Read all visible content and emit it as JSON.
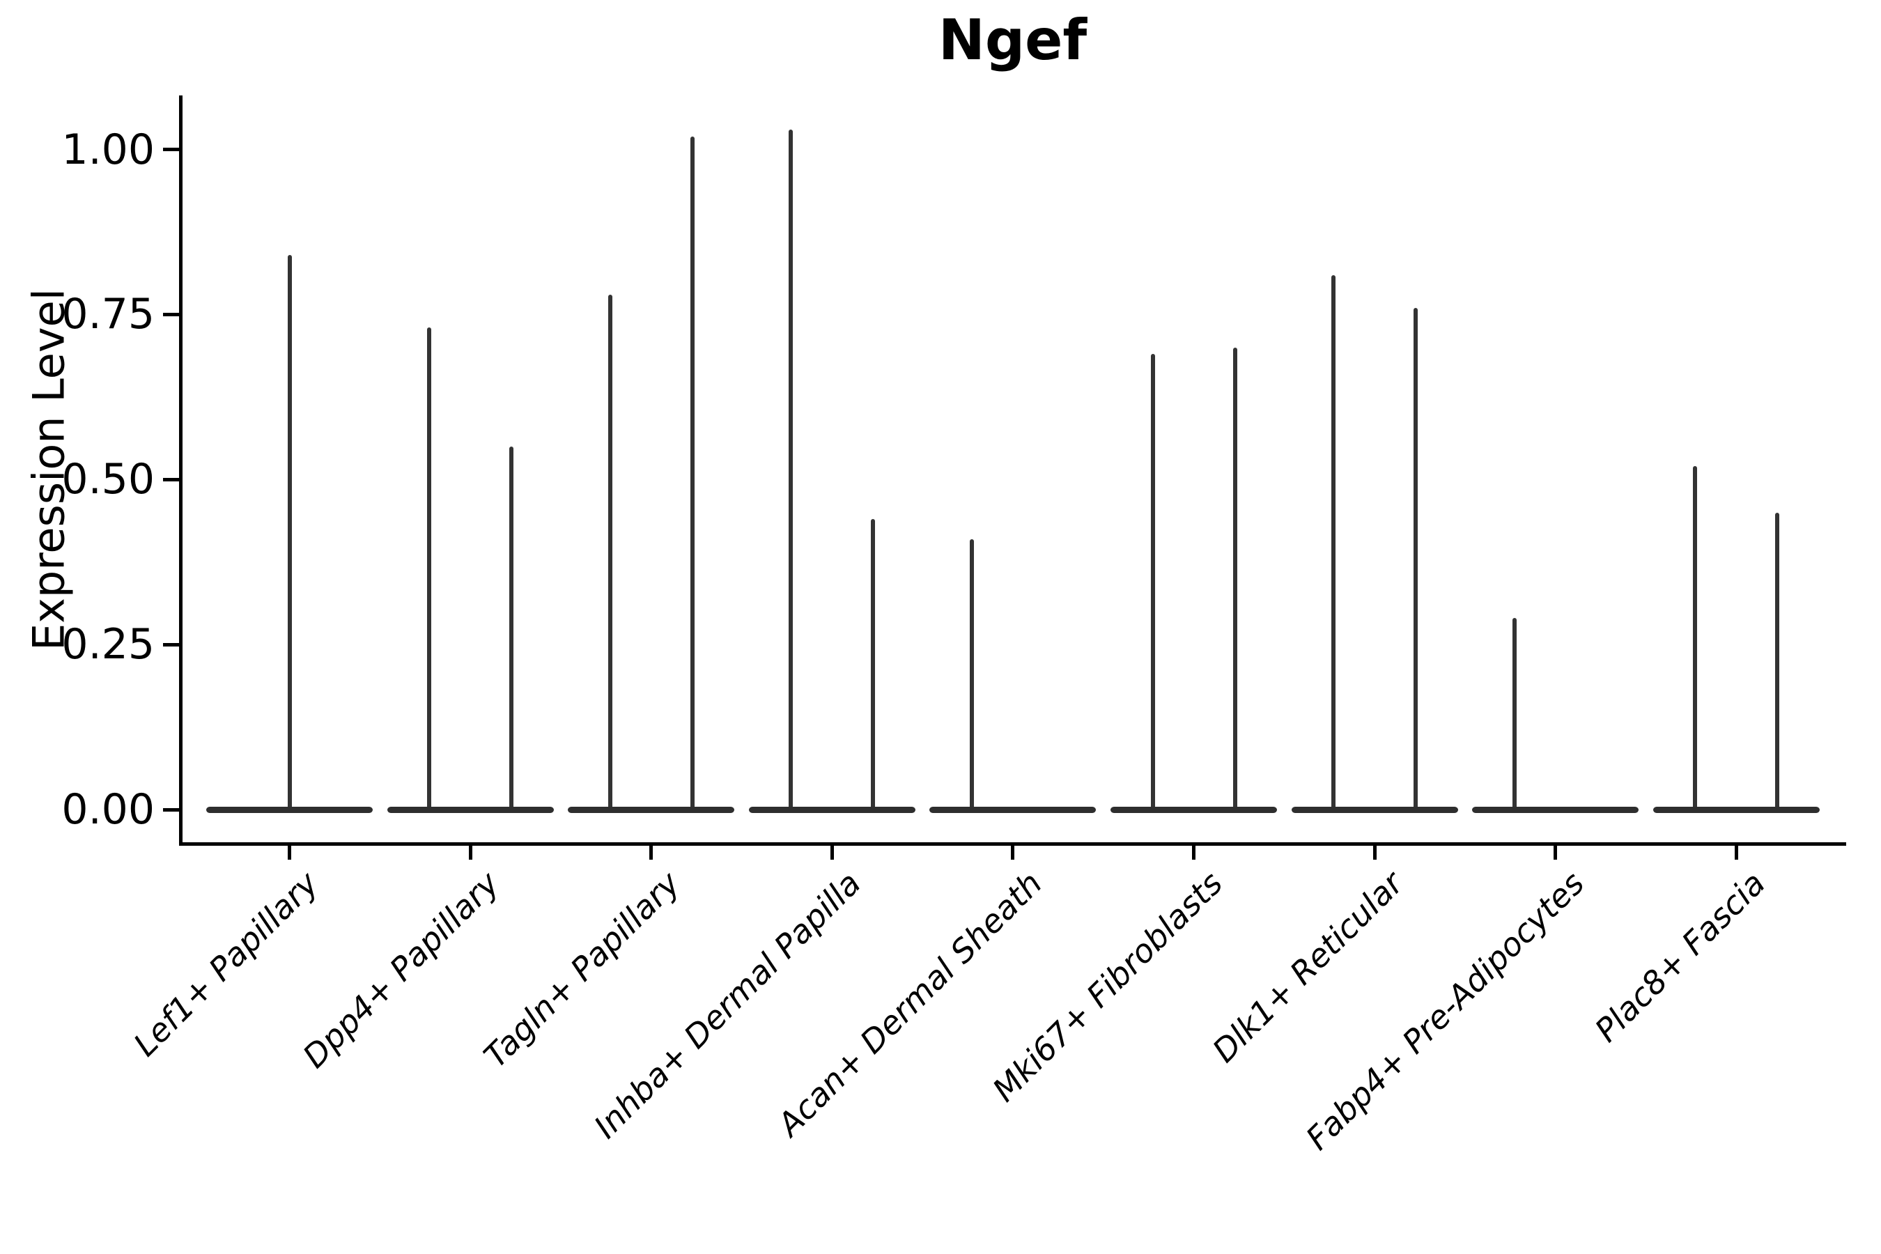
{
  "title": "Ngef",
  "colors": {
    "violin": "#2e2e2e",
    "axis": "#000000",
    "text": "#000000",
    "background": "#ffffff"
  },
  "chart_data": {
    "type": "violin",
    "title": "Ngef",
    "xlabel": "",
    "ylabel": "Expression Level",
    "ylim": [
      -0.05,
      1.08
    ],
    "y_ticks": [
      0,
      0.25,
      0.5,
      0.75,
      1.0
    ],
    "y_tick_labels": [
      "0.00",
      "0.25",
      "0.50",
      "0.75",
      "1.00"
    ],
    "grid": false,
    "legend": "none",
    "description": "Needle-style violin plot; each category shows a flat density bar at expression 0 with thin spikes rising to the maximum expression of rare expressing cells. Categories with two spikes contain two side-by-side (dodged) violins.",
    "categories": [
      "Lef1+ Papillary",
      "Dpp4+ Papillary",
      "Tagln+ Papillary",
      "Inhba+ Dermal Papilla",
      "Acan+ Dermal Sheath",
      "Mki67+ Fibroblasts",
      "Dlk1+ Reticular",
      "Fabp4+ Pre-Adipocytes",
      "Plac8+ Fascia"
    ],
    "violins": [
      {
        "category": "Lef1+ Papillary",
        "baseline_value": 0,
        "spikes": [
          {
            "position": "center",
            "max": 0.84
          }
        ]
      },
      {
        "category": "Dpp4+ Papillary",
        "baseline_value": 0,
        "spikes": [
          {
            "position": "left",
            "max": 0.73
          },
          {
            "position": "right",
            "max": 0.55
          }
        ]
      },
      {
        "category": "Tagln+ Papillary",
        "baseline_value": 0,
        "spikes": [
          {
            "position": "left",
            "max": 0.78
          },
          {
            "position": "right",
            "max": 1.02
          }
        ]
      },
      {
        "category": "Inhba+ Dermal Papilla",
        "baseline_value": 0,
        "spikes": [
          {
            "position": "left",
            "max": 1.03
          },
          {
            "position": "right",
            "max": 0.44
          }
        ]
      },
      {
        "category": "Acan+ Dermal Sheath",
        "baseline_value": 0,
        "spikes": [
          {
            "position": "left",
            "max": 0.41
          }
        ]
      },
      {
        "category": "Mki67+ Fibroblasts",
        "baseline_value": 0,
        "spikes": [
          {
            "position": "left",
            "max": 0.69
          },
          {
            "position": "right",
            "max": 0.7
          }
        ]
      },
      {
        "category": "Dlk1+ Reticular",
        "baseline_value": 0,
        "spikes": [
          {
            "position": "left",
            "max": 0.81
          },
          {
            "position": "right",
            "max": 0.76
          }
        ]
      },
      {
        "category": "Fabp4+ Pre-Adipocytes",
        "baseline_value": 0,
        "spikes": [
          {
            "position": "left",
            "max": 0.29
          }
        ]
      },
      {
        "category": "Plac8+ Fascia",
        "baseline_value": 0,
        "spikes": [
          {
            "position": "left",
            "max": 0.52
          },
          {
            "position": "right",
            "max": 0.45
          }
        ]
      }
    ]
  }
}
